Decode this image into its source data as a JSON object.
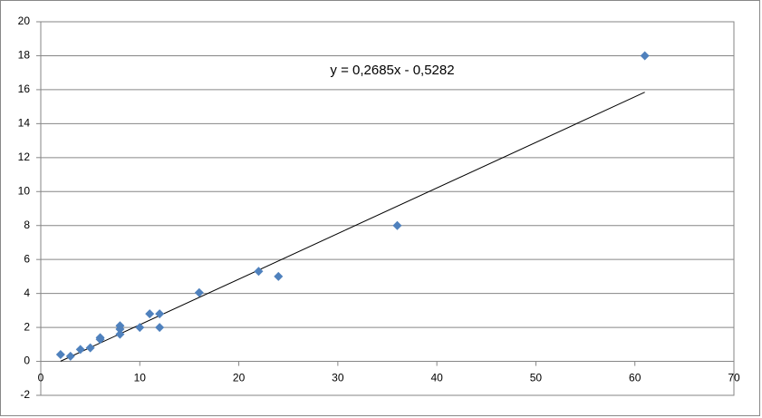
{
  "chart_data": {
    "type": "scatter",
    "series": [
      {
        "color": "#4f81bd",
        "x": [
          2,
          3,
          4,
          5,
          6,
          6,
          8,
          8,
          8,
          10,
          11,
          12,
          12,
          16,
          22,
          24,
          36,
          61
        ],
        "values": [
          0.4,
          0.3,
          0.7,
          0.8,
          1.3,
          1.4,
          1.6,
          1.9,
          2.1,
          2.0,
          2.8,
          2.8,
          2.0,
          4.05,
          5.3,
          5.0,
          8.0,
          18.0
        ]
      }
    ],
    "trendline": {
      "label": "y = 0,2685x - 0,5282",
      "slope": 0.2685,
      "intercept": -0.5282
    },
    "xlim": [
      0,
      70
    ],
    "xticks": [
      0,
      10,
      20,
      30,
      40,
      50,
      60,
      70
    ],
    "ylim": [
      -2,
      20
    ],
    "yticks": [
      -2,
      0,
      2,
      4,
      6,
      8,
      10,
      12,
      14,
      16,
      18,
      20
    ],
    "grid": true
  }
}
